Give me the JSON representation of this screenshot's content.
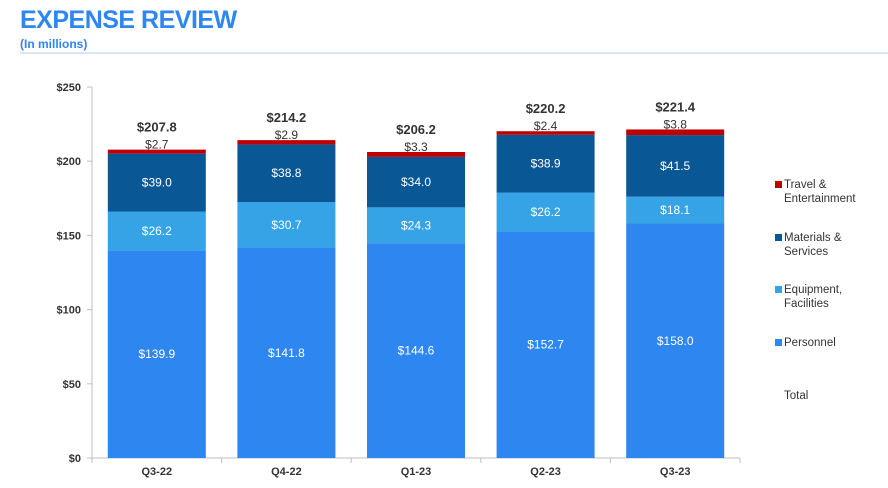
{
  "header": {
    "title": "EXPENSE REVIEW",
    "subtitle": "(In millions)"
  },
  "chart_data": {
    "type": "bar",
    "stacked": true,
    "categories": [
      "Q3-22",
      "Q4-22",
      "Q1-23",
      "Q2-23",
      "Q3-23"
    ],
    "series": [
      {
        "name": "Personnel",
        "color": "#2e86f0",
        "values": [
          139.9,
          141.8,
          144.6,
          152.7,
          158.0
        ],
        "labels": [
          "$139.9",
          "$141.8",
          "$144.6",
          "$152.7",
          "$158.0"
        ]
      },
      {
        "name": "Equipment, Facilities",
        "color": "#36a3e6",
        "values": [
          26.2,
          30.7,
          24.3,
          26.2,
          18.1
        ],
        "labels": [
          "$26.2",
          "$30.7",
          "$24.3",
          "$26.2",
          "$18.1"
        ]
      },
      {
        "name": "Materials & Services",
        "color": "#0a5796",
        "values": [
          39.0,
          38.8,
          34.0,
          38.9,
          41.5
        ],
        "labels": [
          "$39.0",
          "$38.8",
          "$34.0",
          "$38.9",
          "$41.5"
        ]
      },
      {
        "name": "Travel & Entertainment",
        "color": "#c00000",
        "values": [
          2.7,
          2.9,
          3.3,
          2.4,
          3.8
        ],
        "labels": [
          "$2.7",
          "$2.9",
          "$3.3",
          "$2.4",
          "$3.8"
        ]
      }
    ],
    "totals": [
      207.8,
      214.2,
      206.2,
      220.2,
      221.4
    ],
    "total_labels": [
      "$207.8",
      "$214.2",
      "$206.2",
      "$220.2",
      "$221.4"
    ],
    "yticks": [
      0,
      50,
      100,
      150,
      200,
      250
    ],
    "ytick_labels": [
      "$0",
      "$50",
      "$100",
      "$150",
      "$200",
      "$250"
    ],
    "ylim": [
      0,
      250
    ],
    "legend": {
      "placement": "right",
      "items": [
        {
          "lines": [
            "Travel &",
            "Entertainment"
          ],
          "color": "#c00000"
        },
        {
          "lines": [
            "Materials &",
            "Services"
          ],
          "color": "#0a5796"
        },
        {
          "lines": [
            "Equipment,",
            "Facilities"
          ],
          "color": "#36a3e6"
        },
        {
          "lines": [
            "Personnel"
          ],
          "color": "#2e86f0"
        },
        {
          "lines": [
            "Total"
          ],
          "color": null
        }
      ]
    },
    "grid": false
  }
}
